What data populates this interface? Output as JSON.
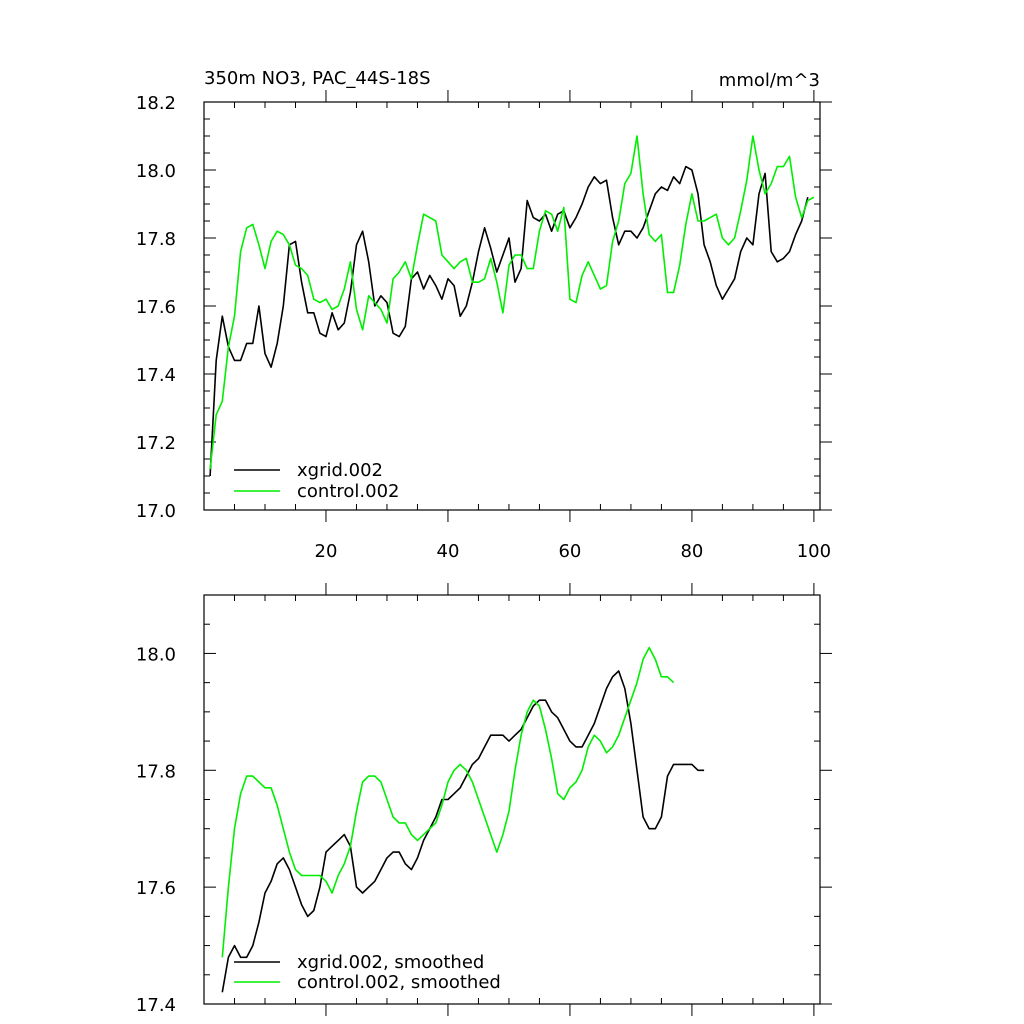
{
  "chart_data": [
    {
      "type": "line",
      "title": "350m NO3, PAC_44S-18S",
      "units": "mmol/m^3",
      "xlim": [
        0,
        101
      ],
      "ylim": [
        17.0,
        18.2
      ],
      "xticks": [
        20,
        40,
        60,
        80,
        100
      ],
      "yticks": [
        17.0,
        17.2,
        17.4,
        17.6,
        17.8,
        18.0,
        18.2
      ],
      "ytick_labels": [
        "17.0",
        "17.2",
        "17.4",
        "17.6",
        "17.8",
        "18.0",
        "18.2"
      ],
      "legend_position": "bottom-left",
      "x_start": 1,
      "series": [
        {
          "name": "xgrid.002",
          "color": "#000000",
          "values": [
            17.1,
            17.44,
            17.57,
            17.48,
            17.44,
            17.44,
            17.49,
            17.49,
            17.6,
            17.46,
            17.42,
            17.49,
            17.6,
            17.78,
            17.79,
            17.67,
            17.58,
            17.58,
            17.52,
            17.51,
            17.58,
            17.53,
            17.55,
            17.64,
            17.78,
            17.82,
            17.73,
            17.6,
            17.63,
            17.61,
            17.52,
            17.51,
            17.54,
            17.68,
            17.7,
            17.65,
            17.69,
            17.66,
            17.62,
            17.68,
            17.66,
            17.57,
            17.6,
            17.67,
            17.76,
            17.83,
            17.77,
            17.7,
            17.75,
            17.8,
            17.67,
            17.71,
            17.91,
            17.86,
            17.85,
            17.87,
            17.82,
            17.87,
            17.88,
            17.83,
            17.86,
            17.9,
            17.95,
            17.98,
            17.96,
            17.97,
            17.86,
            17.78,
            17.82,
            17.82,
            17.8,
            17.83,
            17.88,
            17.93,
            17.95,
            17.94,
            17.98,
            17.96,
            18.01,
            18.0,
            17.93,
            17.78,
            17.73,
            17.66,
            17.62,
            17.65,
            17.68,
            17.76,
            17.8,
            17.78,
            17.93,
            17.99,
            17.76,
            17.73,
            17.74,
            17.76,
            17.81,
            17.85,
            17.92
          ]
        },
        {
          "name": "control.002",
          "color": "#00ee00",
          "values": [
            17.12,
            17.28,
            17.32,
            17.48,
            17.57,
            17.76,
            17.83,
            17.84,
            17.78,
            17.71,
            17.79,
            17.82,
            17.81,
            17.78,
            17.72,
            17.71,
            17.69,
            17.62,
            17.61,
            17.62,
            17.59,
            17.6,
            17.65,
            17.73,
            17.59,
            17.53,
            17.63,
            17.61,
            17.59,
            17.55,
            17.68,
            17.7,
            17.73,
            17.68,
            17.78,
            17.87,
            17.86,
            17.85,
            17.75,
            17.73,
            17.71,
            17.73,
            17.74,
            17.67,
            17.67,
            17.68,
            17.74,
            17.67,
            17.58,
            17.72,
            17.75,
            17.75,
            17.71,
            17.71,
            17.82,
            17.88,
            17.87,
            17.82,
            17.89,
            17.62,
            17.61,
            17.69,
            17.73,
            17.69,
            17.65,
            17.66,
            17.79,
            17.85,
            17.96,
            17.99,
            18.1,
            17.93,
            17.81,
            17.79,
            17.81,
            17.64,
            17.64,
            17.72,
            17.84,
            17.93,
            17.85,
            17.85,
            17.86,
            17.87,
            17.8,
            17.78,
            17.8,
            17.88,
            17.97,
            18.1,
            18.0,
            17.93,
            17.96,
            18.01,
            18.01,
            18.04,
            17.92,
            17.86,
            17.91,
            17.92
          ]
        }
      ]
    },
    {
      "type": "line",
      "xlim": [
        0,
        101
      ],
      "ylim": [
        17.4,
        18.1
      ],
      "xticks": [
        20,
        40,
        60,
        80,
        100
      ],
      "yticks": [
        17.4,
        17.6,
        17.8,
        18.0
      ],
      "ytick_labels": [
        "17.4",
        "17.6",
        "17.8",
        "18.0"
      ],
      "legend_position": "bottom-left",
      "x_start": 3,
      "series": [
        {
          "name": "xgrid.002, smoothed",
          "color": "#000000",
          "values": [
            17.42,
            17.48,
            17.5,
            17.48,
            17.48,
            17.5,
            17.54,
            17.59,
            17.61,
            17.64,
            17.65,
            17.63,
            17.6,
            17.57,
            17.55,
            17.56,
            17.6,
            17.66,
            17.67,
            17.68,
            17.69,
            17.67,
            17.6,
            17.59,
            17.6,
            17.61,
            17.63,
            17.65,
            17.66,
            17.66,
            17.64,
            17.63,
            17.65,
            17.68,
            17.7,
            17.72,
            17.75,
            17.75,
            17.76,
            17.77,
            17.79,
            17.81,
            17.82,
            17.84,
            17.86,
            17.86,
            17.86,
            17.85,
            17.86,
            17.87,
            17.89,
            17.91,
            17.92,
            17.92,
            17.9,
            17.89,
            17.87,
            17.85,
            17.84,
            17.84,
            17.86,
            17.88,
            17.91,
            17.94,
            17.96,
            17.97,
            17.94,
            17.88,
            17.8,
            17.72,
            17.7,
            17.7,
            17.72,
            17.79,
            17.81,
            17.81,
            17.81,
            17.81,
            17.8,
            17.8
          ]
        },
        {
          "name": "control.002, smoothed",
          "color": "#00ee00",
          "values": [
            17.48,
            17.6,
            17.7,
            17.76,
            17.79,
            17.79,
            17.78,
            17.77,
            17.77,
            17.74,
            17.7,
            17.66,
            17.63,
            17.62,
            17.62,
            17.62,
            17.62,
            17.61,
            17.59,
            17.62,
            17.64,
            17.67,
            17.73,
            17.78,
            17.79,
            17.79,
            17.78,
            17.75,
            17.72,
            17.71,
            17.71,
            17.69,
            17.68,
            17.69,
            17.7,
            17.71,
            17.74,
            17.78,
            17.8,
            17.81,
            17.8,
            17.78,
            17.75,
            17.72,
            17.69,
            17.66,
            17.69,
            17.73,
            17.8,
            17.86,
            17.9,
            17.92,
            17.91,
            17.87,
            17.82,
            17.76,
            17.75,
            17.77,
            17.78,
            17.8,
            17.84,
            17.86,
            17.85,
            17.83,
            17.84,
            17.86,
            17.89,
            17.92,
            17.95,
            17.99,
            18.01,
            17.99,
            17.96,
            17.96,
            17.95
          ]
        }
      ]
    }
  ]
}
